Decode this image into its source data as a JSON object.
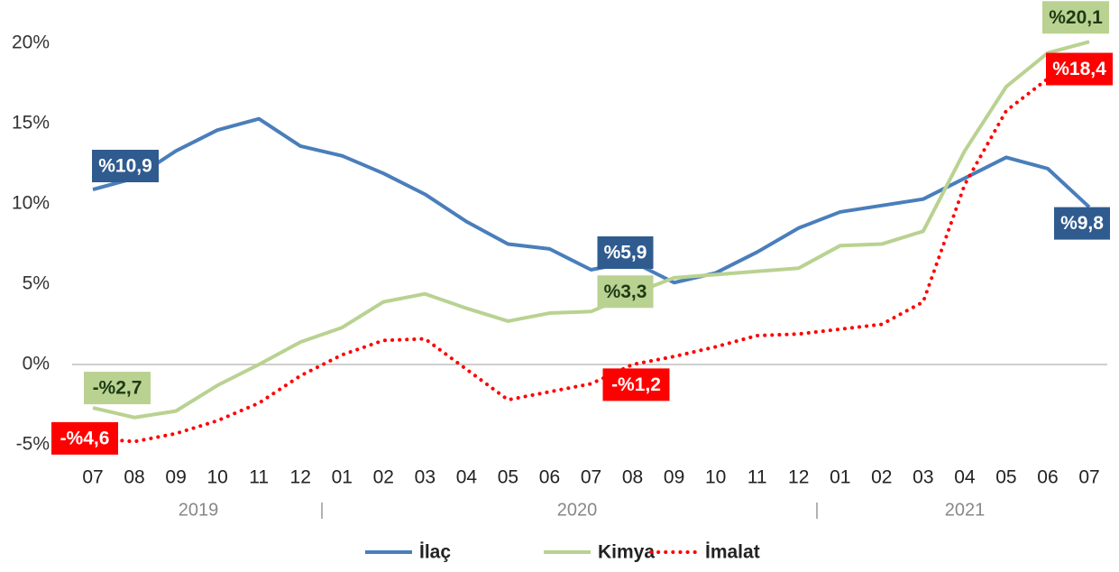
{
  "chart_data": {
    "type": "line",
    "categories": [
      "07",
      "08",
      "09",
      "10",
      "11",
      "12",
      "01",
      "02",
      "03",
      "04",
      "05",
      "06",
      "07",
      "08",
      "09",
      "10",
      "11",
      "12",
      "01",
      "02",
      "03",
      "04",
      "05",
      "06",
      "07"
    ],
    "group_labels": [
      "2019",
      "2020",
      "2021"
    ],
    "series": [
      {
        "name": "İlaç",
        "color": "#4a7ebb",
        "style": "solid",
        "values": [
          10.9,
          11.6,
          13.3,
          14.6,
          15.3,
          13.6,
          13.0,
          11.9,
          10.6,
          8.9,
          7.5,
          7.2,
          5.9,
          6.4,
          5.1,
          5.7,
          7.0,
          8.5,
          9.5,
          9.9,
          10.3,
          11.6,
          12.9,
          12.2,
          9.8
        ],
        "value_labels": [
          "%10,9",
          null,
          null,
          null,
          null,
          null,
          null,
          null,
          null,
          null,
          null,
          null,
          "%5,9",
          null,
          null,
          null,
          null,
          null,
          null,
          null,
          null,
          null,
          null,
          null,
          "%9,8"
        ]
      },
      {
        "name": "Kimya",
        "color": "#b9d291",
        "style": "solid",
        "values": [
          -2.7,
          -3.3,
          -2.9,
          -1.3,
          0.0,
          1.4,
          2.3,
          3.9,
          4.4,
          3.5,
          2.7,
          3.2,
          3.3,
          4.4,
          5.4,
          5.6,
          5.8,
          6.0,
          7.4,
          7.5,
          8.3,
          13.3,
          17.3,
          19.4,
          20.1
        ],
        "value_labels": [
          "-%2,7",
          null,
          null,
          null,
          null,
          null,
          null,
          null,
          null,
          null,
          null,
          null,
          "%3,3",
          null,
          null,
          null,
          null,
          null,
          null,
          null,
          null,
          null,
          null,
          null,
          "%20,1"
        ]
      },
      {
        "name": "İmalat",
        "color": "#ff0000",
        "style": "dotted",
        "values": [
          -4.6,
          -4.8,
          -4.3,
          -3.5,
          -2.4,
          -0.7,
          0.6,
          1.5,
          1.6,
          -0.3,
          -2.2,
          -1.7,
          -1.2,
          0.0,
          0.5,
          1.1,
          1.8,
          1.9,
          2.2,
          2.5,
          3.9,
          11.2,
          15.8,
          17.8,
          18.4
        ],
        "value_labels": [
          "-%4,6",
          null,
          null,
          null,
          null,
          null,
          null,
          null,
          null,
          null,
          null,
          null,
          "-%1,2",
          null,
          null,
          null,
          null,
          null,
          null,
          null,
          null,
          null,
          null,
          null,
          "%18,4"
        ]
      }
    ],
    "ylim": [
      -6,
      22.7
    ],
    "yticks": [
      {
        "value": -5,
        "label": "-5%"
      },
      {
        "value": 0,
        "label": "0%"
      },
      {
        "value": 5,
        "label": "5%"
      },
      {
        "value": 10,
        "label": "10%"
      },
      {
        "value": 15,
        "label": "15%"
      },
      {
        "value": 20,
        "label": "20%"
      }
    ],
    "legend": "bottom"
  }
}
